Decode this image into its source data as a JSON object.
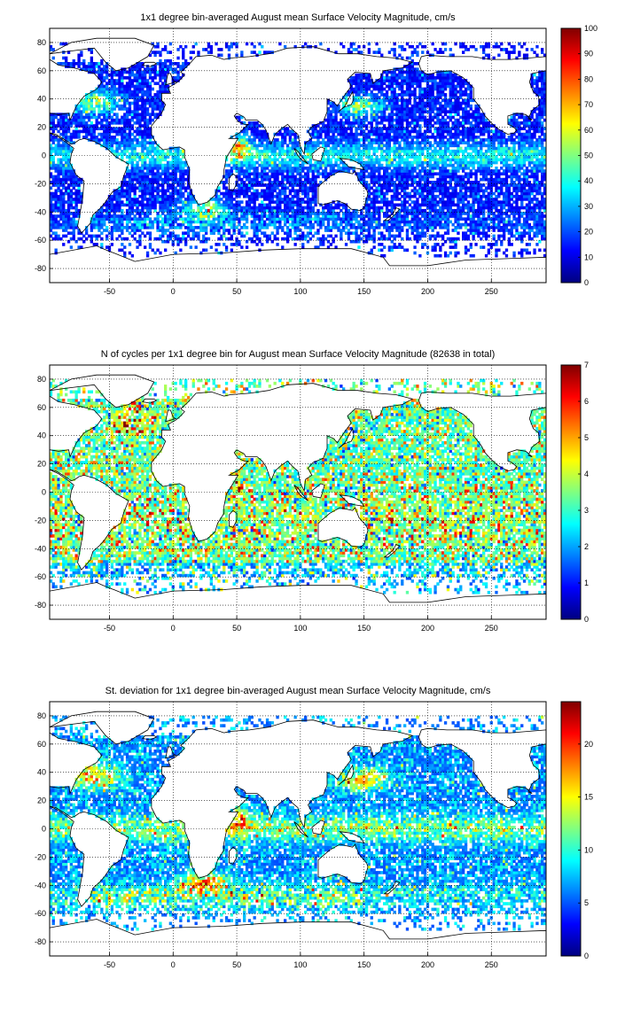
{
  "chart_data": [
    {
      "type": "heatmap",
      "title": "1x1 degree bin-averaged August mean Surface Velocity Magnitude, cm/s",
      "xlim": [
        -97,
        293
      ],
      "ylim": [
        -90,
        90
      ],
      "x_ticks": [
        -50,
        0,
        50,
        100,
        150,
        200,
        250
      ],
      "y_ticks": [
        -80,
        -60,
        -40,
        -20,
        0,
        20,
        40,
        60,
        80
      ],
      "grid": true,
      "colorbar": {
        "range": [
          0,
          100
        ],
        "ticks": [
          0,
          10,
          20,
          30,
          40,
          50,
          60,
          70,
          80,
          90,
          100
        ],
        "colormap": "jet"
      },
      "field": "velocity"
    },
    {
      "type": "heatmap",
      "title": "N of cycles per 1x1 degree bin for August mean Surface Velocity Magnitude (82638 in total)",
      "xlim": [
        -97,
        293
      ],
      "ylim": [
        -90,
        90
      ],
      "x_ticks": [
        -50,
        0,
        50,
        100,
        150,
        200,
        250
      ],
      "y_ticks": [
        -80,
        -60,
        -40,
        -20,
        0,
        20,
        40,
        60,
        80
      ],
      "grid": true,
      "colorbar": {
        "range": [
          0,
          7
        ],
        "ticks": [
          0,
          1,
          2,
          3,
          4,
          5,
          6,
          7
        ],
        "colormap": "jet"
      },
      "field": "cycles",
      "total_cycles": 82638
    },
    {
      "type": "heatmap",
      "title": "St. deviation for 1x1 degree bin-averaged August mean Surface Velocity Magnitude, cm/s",
      "xlim": [
        -97,
        293
      ],
      "ylim": [
        -90,
        90
      ],
      "x_ticks": [
        -50,
        0,
        50,
        100,
        150,
        200,
        250
      ],
      "y_ticks": [
        -80,
        -60,
        -40,
        -20,
        0,
        20,
        40,
        60,
        80
      ],
      "grid": true,
      "colorbar": {
        "range": [
          0,
          24
        ],
        "ticks": [
          0,
          5,
          10,
          15,
          20
        ],
        "colormap": "jet"
      },
      "field": "stdev"
    }
  ]
}
